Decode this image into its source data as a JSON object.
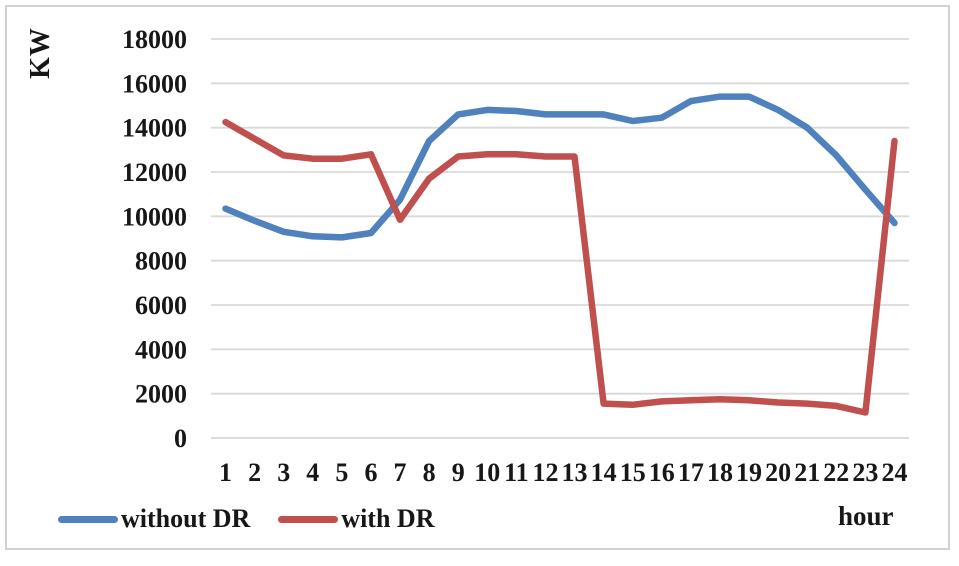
{
  "figure": {
    "y_axis_title": "KW",
    "x_axis_title": "hour"
  },
  "chart_data": {
    "type": "line",
    "title": "",
    "xlabel": "hour",
    "ylabel": "KW",
    "x": [
      1,
      2,
      3,
      4,
      5,
      6,
      7,
      8,
      9,
      10,
      11,
      12,
      13,
      14,
      15,
      16,
      17,
      18,
      19,
      20,
      21,
      22,
      23,
      24
    ],
    "ylim": [
      0,
      18000
    ],
    "y_tick_step": 2000,
    "grid": true,
    "grid_color": "#d9d9d9",
    "legend_position": "bottom-left",
    "series": [
      {
        "name": "without DR",
        "color": "#4F81BD",
        "values": [
          10350,
          9800,
          9300,
          9100,
          9050,
          9250,
          10750,
          13400,
          14600,
          14800,
          14750,
          14600,
          14600,
          14600,
          14300,
          14450,
          15200,
          15400,
          15400,
          14800,
          14000,
          12750,
          11200,
          9700
        ]
      },
      {
        "name": "with DR",
        "color": "#C0504D",
        "values": [
          14250,
          13500,
          12750,
          12600,
          12600,
          12800,
          9850,
          11700,
          12700,
          12800,
          12800,
          12700,
          12700,
          1550,
          1500,
          1650,
          1700,
          1750,
          1700,
          1600,
          1550,
          1450,
          1150,
          13400
        ]
      }
    ]
  }
}
